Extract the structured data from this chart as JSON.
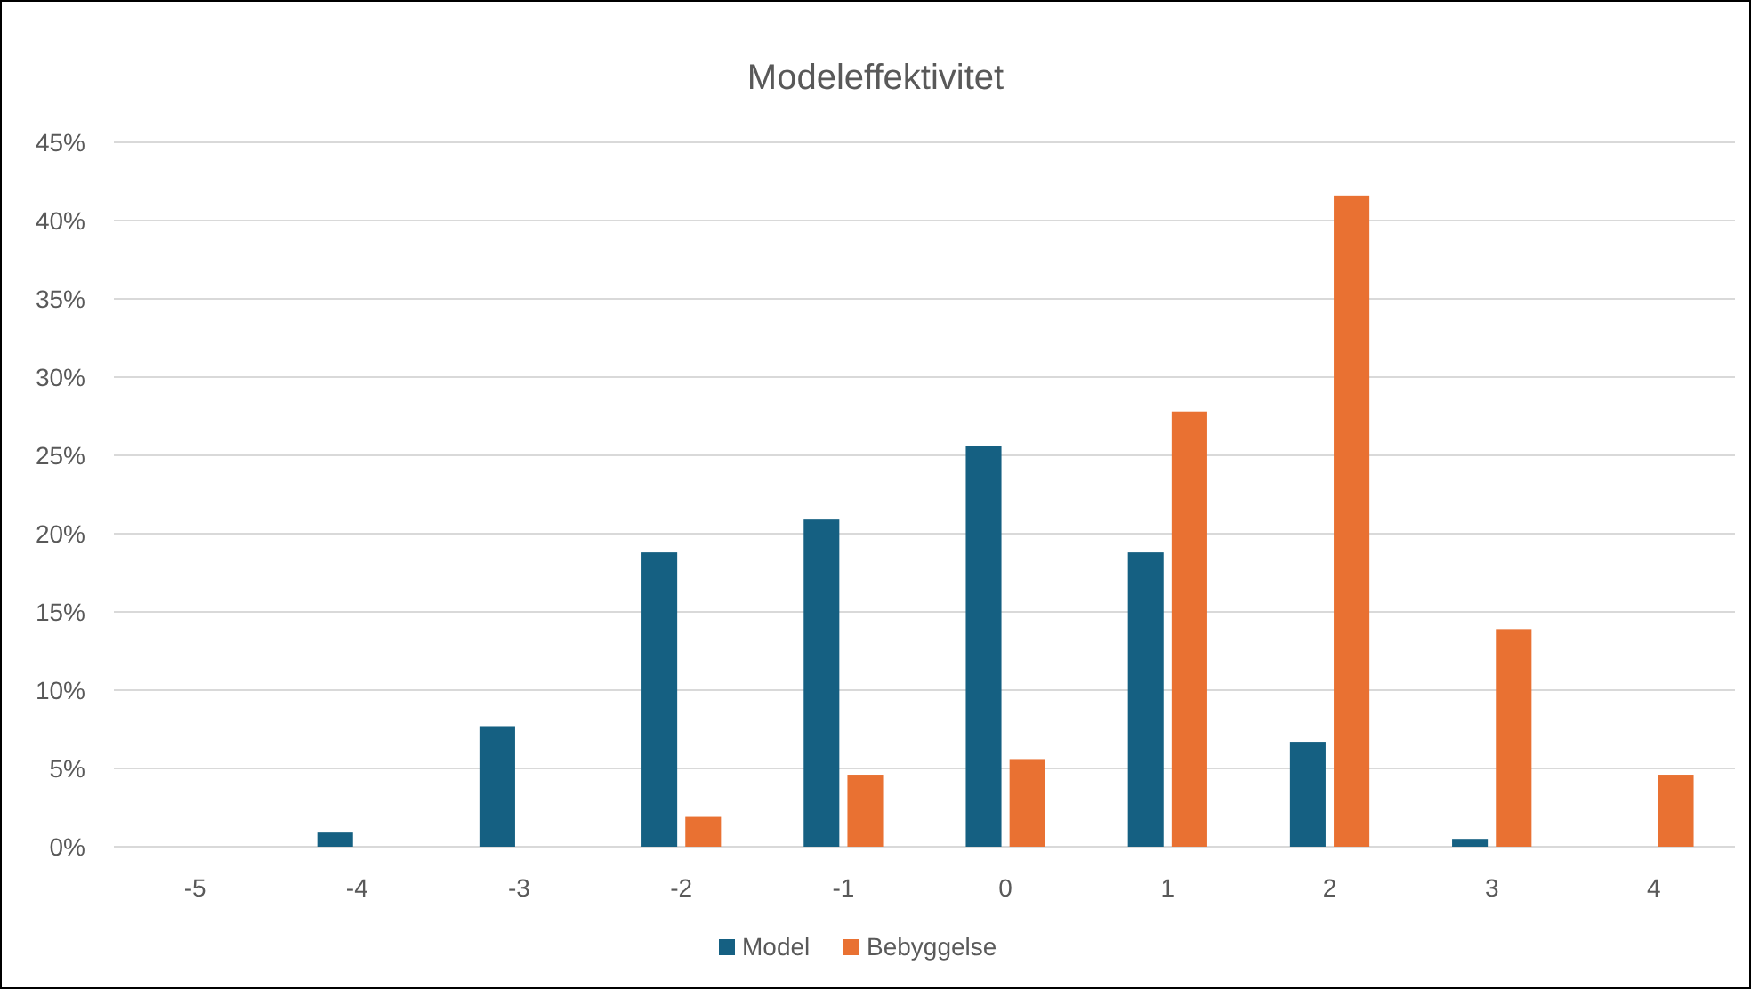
{
  "chart_data": {
    "type": "bar",
    "title": "Modeleffektivitet",
    "categories": [
      "-5",
      "-4",
      "-3",
      "-2",
      "-1",
      "0",
      "1",
      "2",
      "3",
      "4"
    ],
    "series": [
      {
        "name": "Model",
        "color": "#156082",
        "values": [
          0,
          0.9,
          7.7,
          18.8,
          20.9,
          25.6,
          18.8,
          6.7,
          0.5,
          0
        ]
      },
      {
        "name": "Bebyggelse",
        "color": "#e97132",
        "values": [
          0,
          0,
          0,
          1.9,
          4.6,
          5.6,
          27.8,
          41.6,
          13.9,
          4.6
        ]
      }
    ],
    "ylim": [
      0,
      45
    ],
    "yticks": [
      {
        "value": 0,
        "label": "0%"
      },
      {
        "value": 5,
        "label": "5%"
      },
      {
        "value": 10,
        "label": "10%"
      },
      {
        "value": 15,
        "label": "15%"
      },
      {
        "value": 20,
        "label": "20%"
      },
      {
        "value": 25,
        "label": "25%"
      },
      {
        "value": 30,
        "label": "30%"
      },
      {
        "value": 35,
        "label": "35%"
      },
      {
        "value": 40,
        "label": "40%"
      },
      {
        "value": 45,
        "label": "45%"
      }
    ],
    "grid": "y",
    "legend": "bottom"
  }
}
